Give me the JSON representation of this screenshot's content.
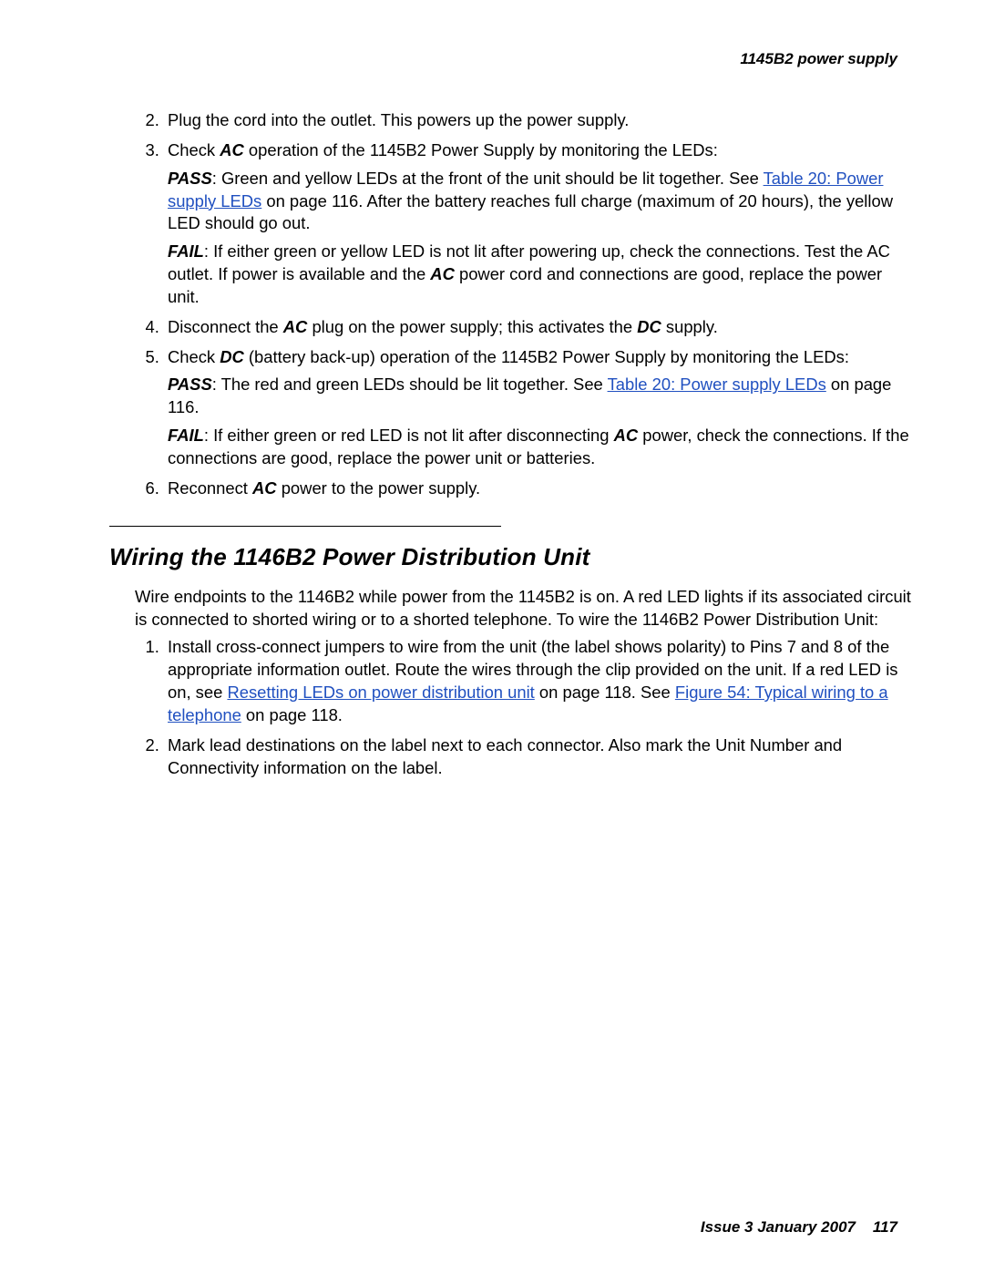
{
  "header": {
    "text": "1145B2 power supply"
  },
  "main_steps": {
    "start": 2,
    "items": [
      {
        "text": "Plug the cord into the outlet. This powers up the power supply."
      },
      {
        "text_prefix": "Check ",
        "bold1": "AC",
        "text_after_bold1": " operation of the 1145B2 Power Supply by monitoring the LEDs:",
        "pass_label": "PASS",
        "pass_before_link": ": Green and yellow LEDs at the front of the unit should be lit together. See ",
        "pass_link": "Table 20:  Power supply LEDs",
        "pass_after_link": " on page 116. After the battery reaches full charge (maximum of 20 hours), the yellow LED should go out.",
        "fail_label": "FAIL",
        "fail_before_bold": ": If either green or yellow LED is not lit after powering up, check the connections. Test the AC outlet. If power is available and the ",
        "fail_bold": "AC",
        "fail_after_bold": " power cord and connections are good, replace the power unit."
      },
      {
        "text_prefix": "Disconnect the ",
        "bold1": "AC",
        "text_mid": " plug on the power supply; this activates the ",
        "bold2": "DC",
        "text_suffix": " supply."
      },
      {
        "text_prefix": "Check ",
        "bold1": "DC",
        "text_after_bold1": " (battery back-up) operation of the 1145B2 Power Supply by monitoring the LEDs:",
        "pass_label": "PASS",
        "pass_before_link": ": The red and green LEDs should be lit together. See ",
        "pass_link": "Table 20:  Power supply LEDs",
        "pass_after_link": " on page 116.",
        "fail_label": "FAIL",
        "fail_before_bold": ": If either green or red LED is not lit after disconnecting ",
        "fail_bold": "AC",
        "fail_after_bold": " power, check the connections. If the connections are good, replace the power unit or batteries."
      },
      {
        "text_prefix": "Reconnect ",
        "bold1": "AC",
        "text_suffix": " power to the power supply."
      }
    ]
  },
  "section": {
    "title": "Wiring the 1146B2 Power Distribution Unit",
    "intro": "Wire endpoints to the 1146B2 while power from the 1145B2 is on. A red LED lights if its associated circuit is connected to shorted wiring or to a shorted telephone. To wire the 1146B2 Power Distribution Unit:",
    "steps": [
      {
        "before_link1": "Install cross-connect jumpers to wire from the unit (the label shows polarity) to Pins 7 and 8 of the appropriate information outlet. Route the wires through the clip provided on the unit. If a red LED is on, see ",
        "link1": "Resetting LEDs on power distribution unit",
        "between": " on page 118. See ",
        "link2": "Figure 54:   Typical wiring to a telephone",
        "after_link2": " on page 118."
      },
      {
        "text": "Mark lead destinations on the label next to each connector. Also mark the Unit Number and Connectivity information on the label."
      }
    ]
  },
  "footer": {
    "left": "Issue 3   January 2007",
    "page": "117"
  }
}
